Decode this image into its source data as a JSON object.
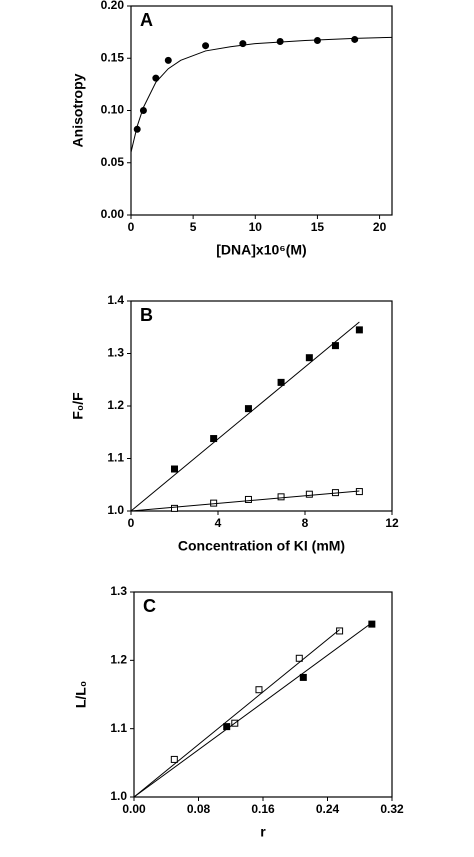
{
  "chart_data": [
    {
      "type": "scatter",
      "panel_label": "A",
      "x_label": "[DNA]x10⁶(M)",
      "y_label": "Anisotropy",
      "xlim": [
        0,
        21
      ],
      "ylim": [
        0,
        0.2
      ],
      "xticks": [
        0,
        5,
        10,
        15,
        20
      ],
      "yticks": [
        {
          "value": 0,
          "label": "0.00"
        },
        {
          "value": 0.05,
          "label": "0.05"
        },
        {
          "value": 0.1,
          "label": "0.10"
        },
        {
          "value": 0.15,
          "label": "0.15"
        },
        {
          "value": 0.2,
          "label": "0.20"
        }
      ],
      "series": [
        {
          "mode": "markers",
          "marker": "filled-circle",
          "color": "#000000",
          "x": [
            0.5,
            1,
            2,
            3,
            6,
            9,
            12,
            15,
            18
          ],
          "values": [
            0.082,
            0.1,
            0.131,
            0.148,
            0.162,
            0.164,
            0.166,
            0.167,
            0.168
          ]
        },
        {
          "mode": "line",
          "color": "#000000",
          "x": [
            0,
            0.5,
            1,
            2,
            3,
            4,
            6,
            8,
            10,
            14,
            18,
            21
          ],
          "values": [
            0.06,
            0.085,
            0.103,
            0.127,
            0.14,
            0.148,
            0.157,
            0.161,
            0.164,
            0.167,
            0.169,
            0.17
          ]
        }
      ]
    },
    {
      "type": "scatter",
      "panel_label": "B",
      "x_label": "Concentration of KI  (mM)",
      "y_label": "F₀/F",
      "xlim": [
        0,
        12
      ],
      "ylim": [
        1,
        1.4
      ],
      "xticks": [
        0,
        4,
        8,
        12
      ],
      "yticks": [
        {
          "value": 1,
          "label": "1.0"
        },
        {
          "value": 1.1,
          "label": "1.1"
        },
        {
          "value": 1.2,
          "label": "1.2"
        },
        {
          "value": 1.3,
          "label": "1.3"
        },
        {
          "value": 1.4,
          "label": "1.4"
        }
      ],
      "series": [
        {
          "mode": "markers",
          "marker": "filled-square",
          "color": "#000000",
          "x": [
            2,
            3.8,
            5.4,
            6.9,
            8.2,
            9.4,
            10.5
          ],
          "values": [
            1.08,
            1.138,
            1.195,
            1.245,
            1.292,
            1.315,
            1.345
          ]
        },
        {
          "mode": "markers",
          "marker": "open-square",
          "color": "#000000",
          "x": [
            2,
            3.8,
            5.4,
            6.9,
            8.2,
            9.4,
            10.5
          ],
          "values": [
            1.005,
            1.015,
            1.022,
            1.027,
            1.032,
            1.035,
            1.037
          ]
        },
        {
          "mode": "line",
          "color": "#000000",
          "x": [
            0,
            10.5
          ],
          "values": [
            1,
            1.36
          ]
        },
        {
          "mode": "line",
          "color": "#000000",
          "x": [
            0,
            10.5
          ],
          "values": [
            1,
            1.038
          ]
        }
      ]
    },
    {
      "type": "scatter",
      "panel_label": "C",
      "x_label": "r",
      "y_label": "L/L₀",
      "xlim": [
        0,
        0.32
      ],
      "ylim": [
        1,
        1.3
      ],
      "xticks": [
        {
          "value": 0,
          "label": "0.00"
        },
        {
          "value": 0.08,
          "label": "0.08"
        },
        {
          "value": 0.16,
          "label": "0.16"
        },
        {
          "value": 0.24,
          "label": "0.24"
        },
        {
          "value": 0.32,
          "label": "0.32"
        }
      ],
      "yticks": [
        {
          "value": 1,
          "label": "1.0"
        },
        {
          "value": 1.1,
          "label": "1.1"
        },
        {
          "value": 1.2,
          "label": "1.2"
        },
        {
          "value": 1.3,
          "label": "1.3"
        }
      ],
      "series": [
        {
          "mode": "markers",
          "marker": "open-square",
          "color": "#000000",
          "x": [
            0.05,
            0.125,
            0.155,
            0.205,
            0.255
          ],
          "values": [
            1.055,
            1.108,
            1.157,
            1.203,
            1.243
          ]
        },
        {
          "mode": "markers",
          "marker": "filled-square",
          "color": "#000000",
          "x": [
            0.115,
            0.21,
            0.295
          ],
          "values": [
            1.103,
            1.175,
            1.253
          ]
        },
        {
          "mode": "line",
          "color": "#000000",
          "x": [
            0,
            0.255
          ],
          "values": [
            1,
            1.245
          ]
        },
        {
          "mode": "line",
          "color": "#000000",
          "x": [
            0,
            0.295
          ],
          "values": [
            1,
            1.255
          ]
        }
      ]
    }
  ]
}
